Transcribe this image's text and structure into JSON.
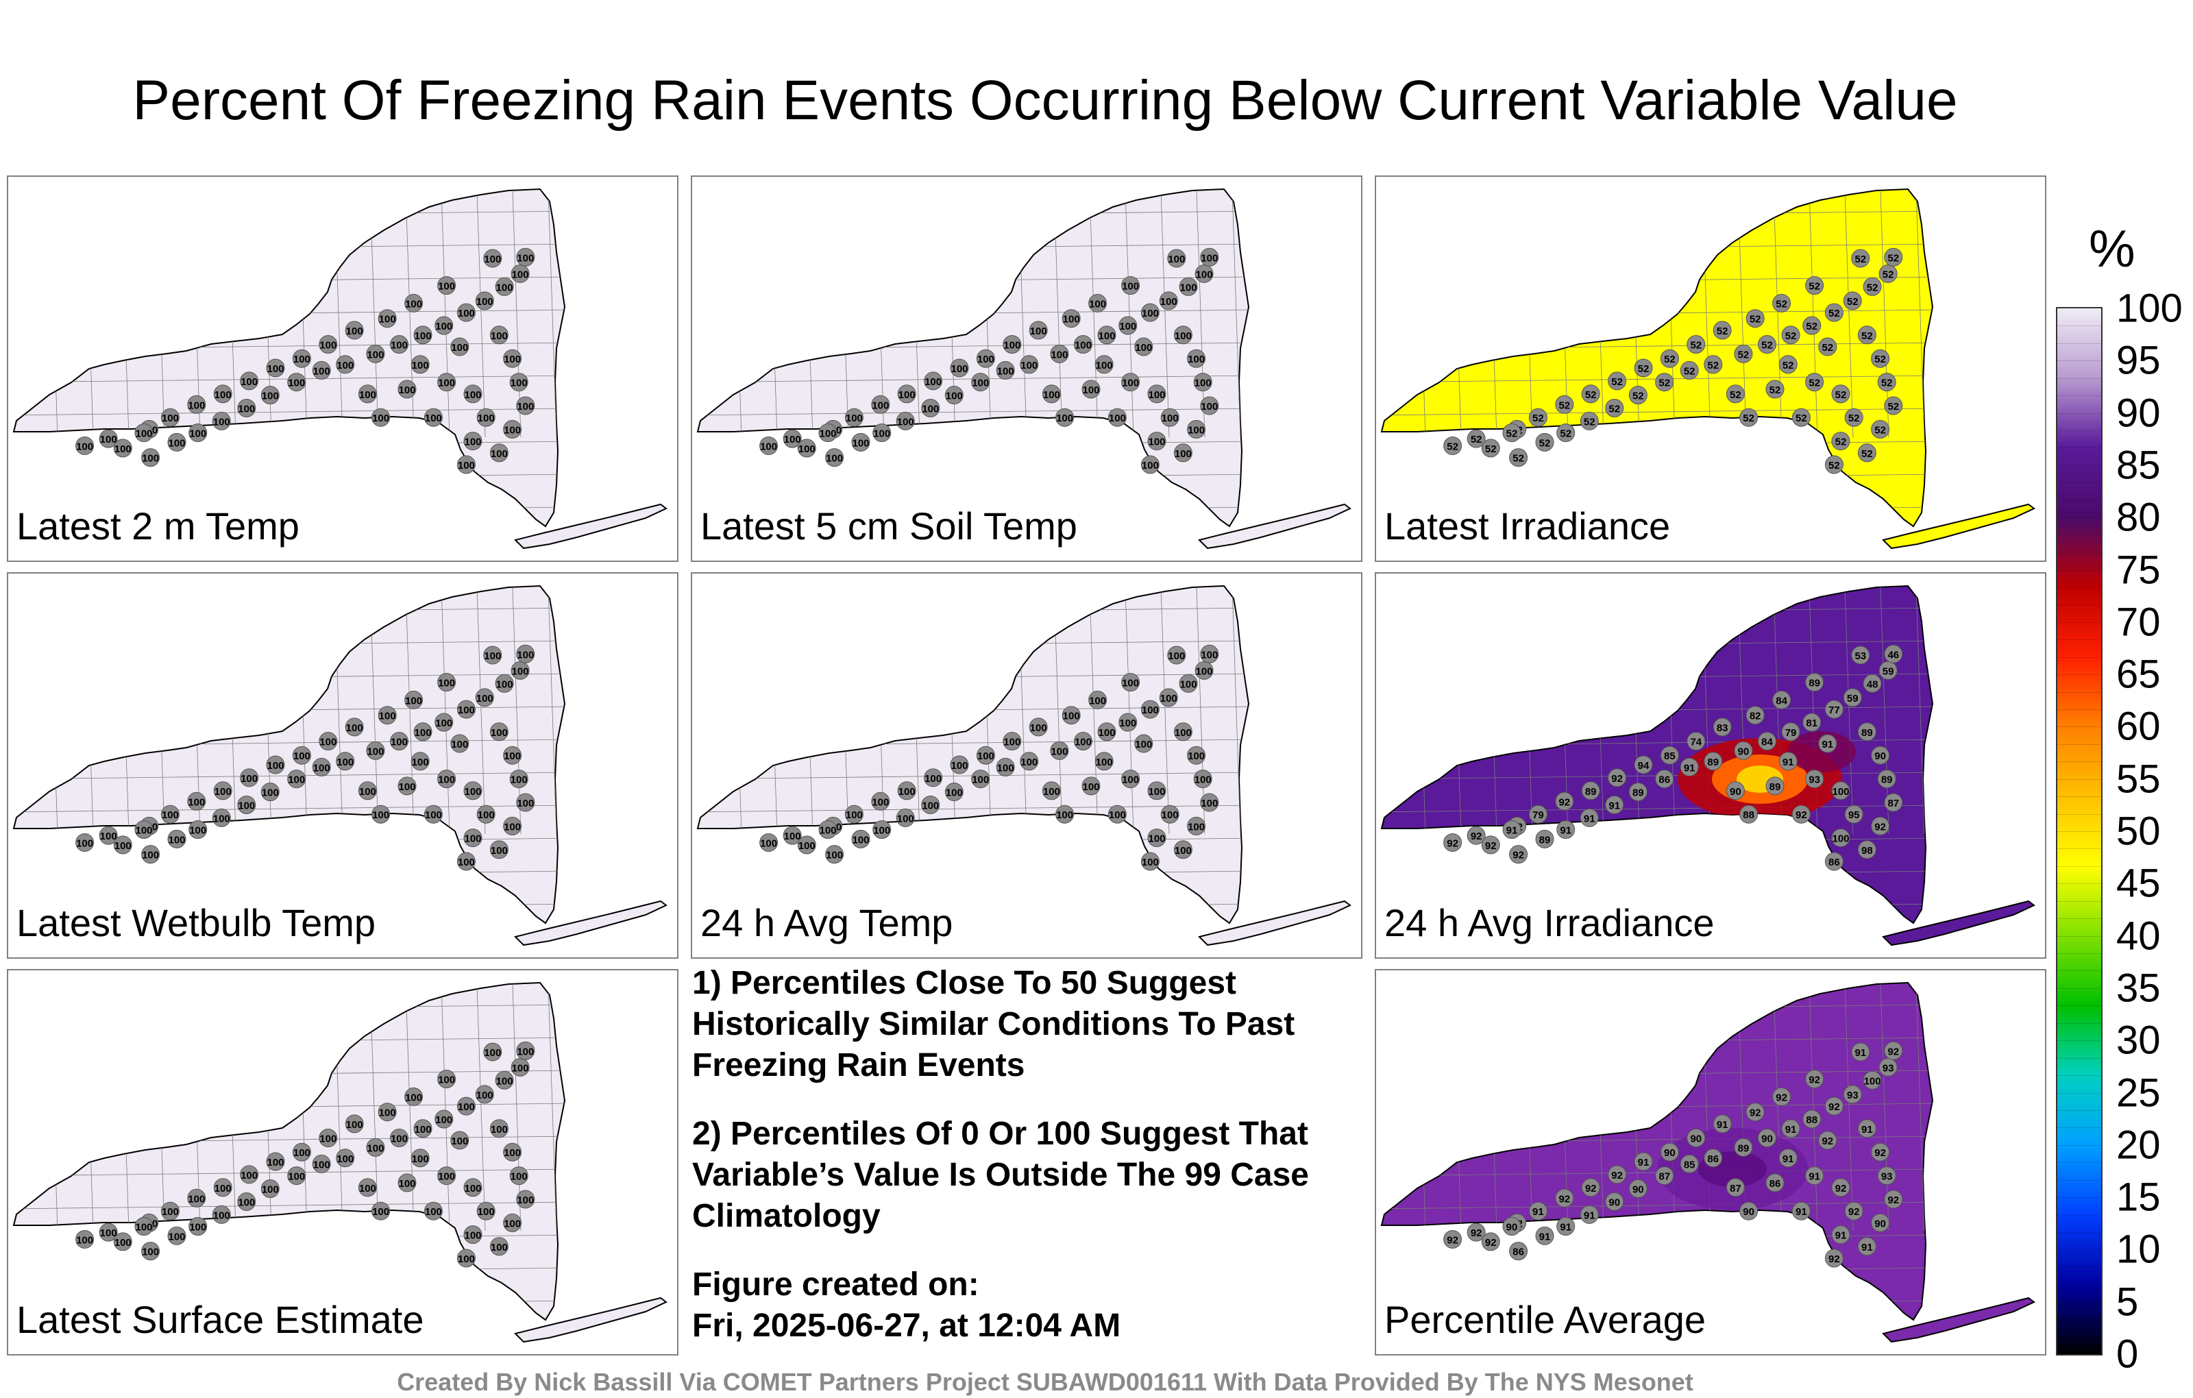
{
  "title": "Percent Of Freezing Rain Events Occurring Below Current Variable Value",
  "panels": [
    {
      "id": "p1",
      "label": "Latest 2 m Temp",
      "fill": "#efeaf3",
      "mode": "const",
      "value": "100"
    },
    {
      "id": "p2",
      "label": "Latest 5 cm Soil Temp",
      "fill": "#efeaf3",
      "mode": "const",
      "value": "100"
    },
    {
      "id": "p3",
      "label": "Latest Irradiance",
      "fill": "#ffff00",
      "mode": "const",
      "value": "52"
    },
    {
      "id": "p4",
      "label": "Latest Wetbulb Temp",
      "fill": "#efeaf3",
      "mode": "const",
      "value": "100"
    },
    {
      "id": "p5",
      "label": "24 h Avg Temp",
      "fill": "#efeaf3",
      "mode": "const",
      "value": "100"
    },
    {
      "id": "p6",
      "label": "24 h Avg Irradiance",
      "fill": "#5a1a9a",
      "mode": "irr"
    },
    {
      "id": "p7",
      "label": "Latest Surface Estimate",
      "fill": "#efeaf3",
      "mode": "const",
      "value": "100"
    },
    {
      "id": "p9",
      "label": "Percentile Average",
      "fill": "#7a2aaa",
      "mode": "avg"
    }
  ],
  "notes": {
    "note1": "1) Percentiles Close To 50 Suggest Historically Similar Conditions To Past Freezing Rain Events",
    "note2": "2) Percentiles Of 0 Or 100 Suggest That Variable’s Value Is Outside The 99 Case Climatology",
    "created_label": "Figure created on:",
    "created_date": "Fri, 2025-06-27, at 12:04 AM"
  },
  "colorbar": {
    "unit": "%",
    "ticks": [
      "100",
      "95",
      "90",
      "85",
      "80",
      "75",
      "70",
      "65",
      "60",
      "55",
      "50",
      "45",
      "40",
      "35",
      "30",
      "25",
      "20",
      "15",
      "10",
      "5",
      "0"
    ],
    "stops": [
      "#f0ecf5",
      "#b89ad0",
      "#5a1a9a",
      "#4a0a6a",
      "#c00000",
      "#ff2000",
      "#ff8000",
      "#ffc000",
      "#ffff00",
      "#80e000",
      "#00c000",
      "#00d0c0",
      "#00a0ff",
      "#0040ff",
      "#0000a0",
      "#000000"
    ]
  },
  "footer": "Created By Nick Bassill Via COMET Partners Project SUBAWD001611 With Data Provided By The NYS Mesonet",
  "station_values": {
    "irr": [
      "92",
      "92",
      "92",
      "92",
      "92",
      "89",
      "91",
      "91",
      "91",
      "89",
      "86",
      "91",
      "89",
      "90",
      "84",
      "79",
      "81",
      "77",
      "59",
      "48",
      "59",
      "46",
      "53",
      "89",
      "84",
      "82",
      "83",
      "74",
      "85",
      "94",
      "92",
      "89",
      "92",
      "79",
      "91",
      "90",
      "89",
      "93",
      "100",
      "95",
      "100",
      "98",
      "92",
      "87",
      "89",
      "90",
      "89",
      "91",
      "88",
      "91",
      "92",
      "86"
    ],
    "avg": [
      "92",
      "92",
      "92",
      "92",
      "86",
      "91",
      "91",
      "91",
      "90",
      "90",
      "87",
      "85",
      "86",
      "89",
      "90",
      "91",
      "88",
      "92",
      "93",
      "100",
      "93",
      "92",
      "91",
      "92",
      "92",
      "92",
      "91",
      "90",
      "90",
      "91",
      "92",
      "92",
      "92",
      "91",
      "90",
      "87",
      "86",
      "91",
      "92",
      "92",
      "91",
      "91",
      "90",
      "92",
      "93",
      "92",
      "91",
      "91",
      "90",
      "92",
      "91",
      "92"
    ]
  }
}
